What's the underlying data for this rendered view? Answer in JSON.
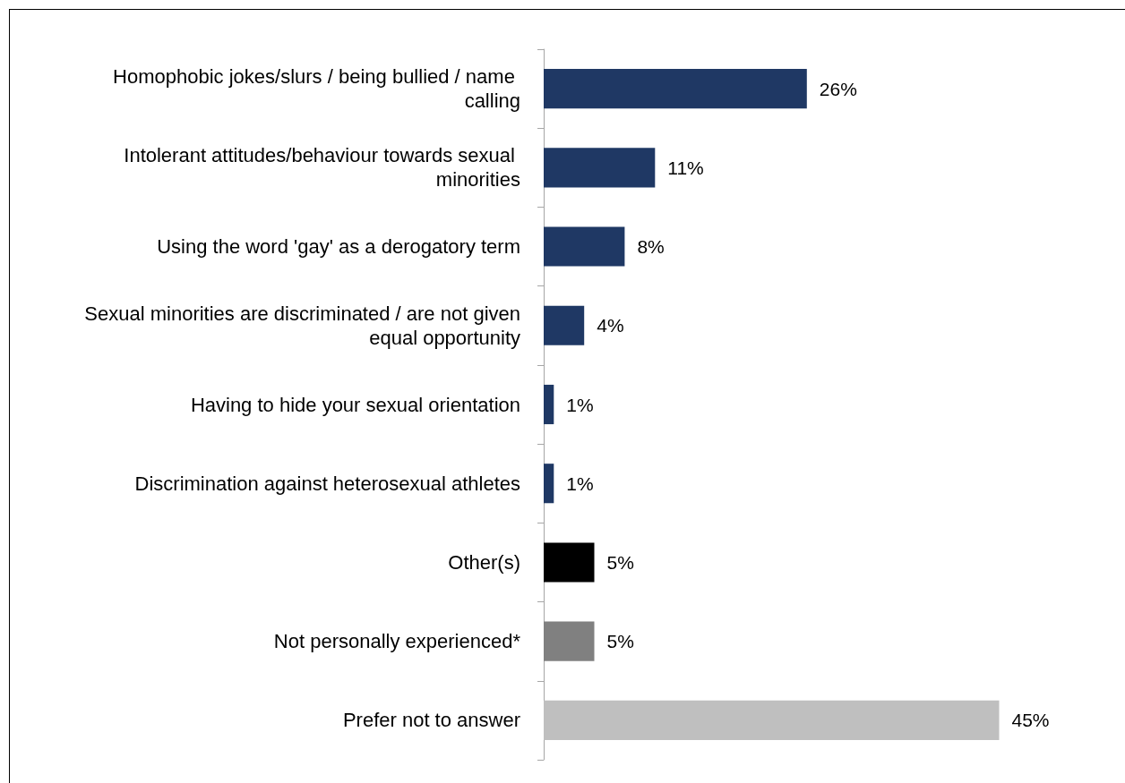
{
  "chart_data": {
    "type": "bar",
    "orientation": "horizontal",
    "categories": [
      "Homophobic jokes/slurs / being bullied / name calling",
      "Intolerant attitudes/behaviour towards sexual minorities",
      "Using the word 'gay' as a derogatory term",
      "Sexual minorities are discriminated / are not given equal opportunity",
      "Having to hide your sexual orientation",
      "Discrimination against heterosexual athletes",
      "Other(s)",
      "Not personally experienced*",
      "Prefer not to answer"
    ],
    "values": [
      26,
      11,
      8,
      4,
      1,
      1,
      5,
      5,
      45
    ],
    "colors": [
      "#1f3864",
      "#1f3864",
      "#1f3864",
      "#1f3864",
      "#1f3864",
      "#1f3864",
      "#000000",
      "#808080",
      "#bfbfbf"
    ],
    "value_labels": [
      "26%",
      "11%",
      "8%",
      "4%",
      "1%",
      "1%",
      "5%",
      "5%",
      "45%"
    ],
    "tick_labels": "y"
  }
}
